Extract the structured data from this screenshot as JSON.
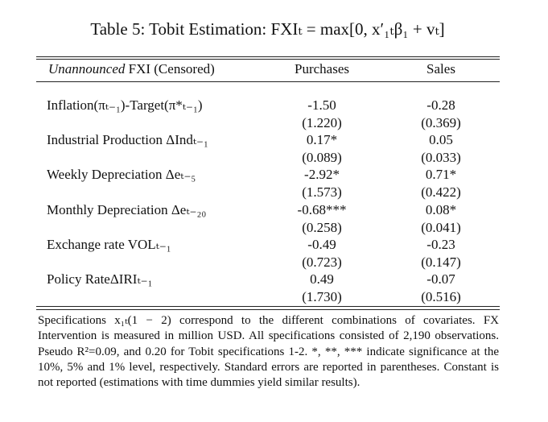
{
  "title": "Table 5: Tobit Estimation: FXIₜ = max[0, x′₁ₜβ₁ + vₜ]",
  "header": {
    "label": {
      "italic": "Unannounced",
      "rest": " FXI (Censored)"
    },
    "purchases": "Purchases",
    "sales": "Sales"
  },
  "rows": [
    {
      "label": "Inflation(πₜ₋₁)-Target(π*ₜ₋₁)",
      "purchases": "-1.50",
      "sales": "-0.28",
      "purchases_se": "(1.220)",
      "sales_se": "(0.369)"
    },
    {
      "label": "Industrial Production ΔIndₜ₋₁",
      "purchases": "0.17*",
      "sales": "0.05",
      "purchases_se": "(0.089)",
      "sales_se": "(0.033)"
    },
    {
      "label": "Weekly Depreciation Δeₜ₋₅",
      "purchases": "-2.92*",
      "sales": "0.71*",
      "purchases_se": "(1.573)",
      "sales_se": "(0.422)"
    },
    {
      "label": "Monthly Depreciation Δeₜ₋₂₀",
      "purchases": "-0.68***",
      "sales": "0.08*",
      "purchases_se": "(0.258)",
      "sales_se": "(0.041)"
    },
    {
      "label": "Exchange rate VOLₜ₋₁",
      "purchases": "-0.49",
      "sales": "-0.23",
      "purchases_se": "(0.723)",
      "sales_se": "(0.147)"
    },
    {
      "label": "Policy RateΔIRIₜ₋₁",
      "purchases": "0.49",
      "sales": "-0.07",
      "purchases_se": "(1.730)",
      "sales_se": "(0.516)"
    }
  ],
  "notes": "Specifications x₁ₜ(1 − 2) correspond to the different combinations of covariates. FX Intervention is measured in million USD. All specifications consisted of 2,190 observations. Pseudo R²=0.09, and 0.20 for Tobit specifications 1-2. *, **, *** indicate significance at the 10%, 5% and 1% level, respectively. Standard errors are reported in parentheses. Constant is not reported (estimations with time dummies yield similar results)."
}
